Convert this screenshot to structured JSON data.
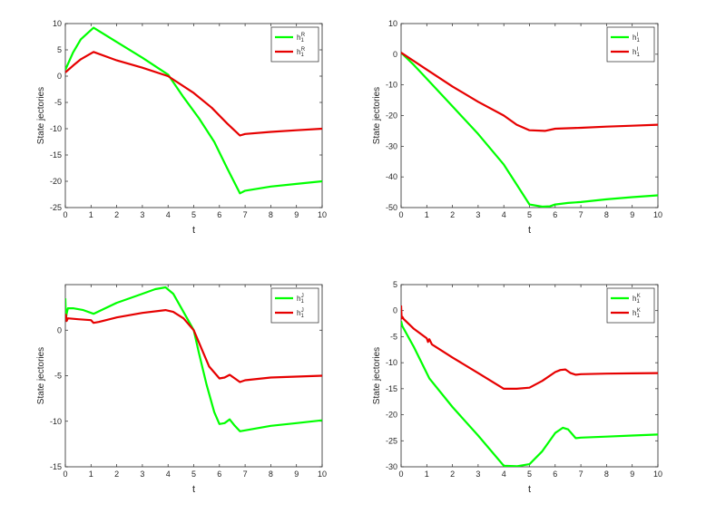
{
  "colors": {
    "green": "#00ff00",
    "red": "#e60000"
  },
  "chart_data": [
    {
      "type": "line",
      "xlabel": "t",
      "ylabel": "State jectories",
      "xlim": [
        0,
        10
      ],
      "ylim": [
        -25,
        10
      ],
      "xticks": [
        0,
        1,
        2,
        3,
        4,
        5,
        6,
        7,
        8,
        9,
        10
      ],
      "yticks": [
        -25,
        -20,
        -15,
        -10,
        -5,
        0,
        5,
        10
      ],
      "legend_position": "top-right",
      "series": [
        {
          "name": "h",
          "sup": "R",
          "sub": "1",
          "color": "#00ff00",
          "x": [
            0,
            0.3,
            0.6,
            1.1,
            2,
            3,
            4,
            4.6,
            5.2,
            5.8,
            6.3,
            6.8,
            7,
            8,
            9,
            10
          ],
          "y": [
            1.2,
            4.5,
            7,
            9.2,
            6.5,
            3.5,
            0.3,
            -4,
            -8,
            -12.5,
            -17.5,
            -22.3,
            -21.8,
            -21,
            -20.5,
            -20
          ]
        },
        {
          "name": "h",
          "sup": "R",
          "sub": "1",
          "color": "#e60000",
          "x": [
            0,
            0.3,
            0.6,
            1.1,
            2,
            3,
            4,
            5,
            5.7,
            6.3,
            6.8,
            7,
            8,
            9,
            10
          ],
          "y": [
            0.7,
            2,
            3.2,
            4.6,
            3,
            1.6,
            0,
            -3.2,
            -6,
            -9,
            -11.3,
            -11,
            -10.6,
            -10.3,
            -10
          ]
        }
      ]
    },
    {
      "type": "line",
      "xlabel": "t",
      "ylabel": "State jectories",
      "xlim": [
        0,
        10
      ],
      "ylim": [
        -50,
        10
      ],
      "xticks": [
        0,
        1,
        2,
        3,
        4,
        5,
        6,
        7,
        8,
        9,
        10
      ],
      "yticks": [
        -50,
        -40,
        -30,
        -20,
        -10,
        0,
        10
      ],
      "legend_position": "top-right",
      "series": [
        {
          "name": "h",
          "sup": "I",
          "sub": "1",
          "color": "#00ff00",
          "x": [
            0,
            0.5,
            1,
            2,
            3,
            4,
            4.5,
            5,
            5.5,
            5.8,
            6,
            6.5,
            7,
            8,
            9,
            10
          ],
          "y": [
            0.5,
            -3.5,
            -8,
            -17,
            -26,
            -36,
            -42.5,
            -49,
            -49.7,
            -49.6,
            -49,
            -48.5,
            -48.2,
            -47.3,
            -46.6,
            -46
          ]
        },
        {
          "name": "h",
          "sup": "I",
          "sub": "1",
          "color": "#e60000",
          "x": [
            0,
            1,
            2,
            3,
            4,
            4.5,
            5,
            5.6,
            6,
            7,
            8,
            9,
            10
          ],
          "y": [
            0.5,
            -5,
            -10.5,
            -15.5,
            -20,
            -23,
            -24.8,
            -25,
            -24.3,
            -24,
            -23.6,
            -23.3,
            -23
          ]
        }
      ]
    },
    {
      "type": "line",
      "xlabel": "t",
      "ylabel": "State jectories",
      "xlim": [
        0,
        10
      ],
      "ylim": [
        -15,
        5
      ],
      "xticks": [
        0,
        1,
        2,
        3,
        4,
        5,
        6,
        7,
        8,
        9,
        10
      ],
      "yticks": [
        -15,
        -10,
        -5,
        0
      ],
      "legend_position": "top-right",
      "series": [
        {
          "name": "h",
          "sup": "J",
          "sub": "1",
          "color": "#00ff00",
          "x": [
            0,
            0.02,
            0.05,
            0.1,
            0.3,
            0.7,
            1.1,
            2,
            3,
            3.5,
            3.9,
            4.2,
            4.6,
            5,
            5.2,
            5.5,
            5.8,
            6,
            6.2,
            6.4,
            6.6,
            6.8,
            7,
            8,
            9,
            10
          ],
          "y": [
            3.5,
            1.2,
            1.8,
            2.4,
            2.4,
            2.2,
            1.8,
            3,
            4,
            4.5,
            4.7,
            4,
            2,
            0,
            -2.5,
            -6,
            -9,
            -10.3,
            -10.2,
            -9.8,
            -10.5,
            -11.1,
            -11,
            -10.5,
            -10.2,
            -9.9
          ]
        },
        {
          "name": "h",
          "sup": "J",
          "sub": "1",
          "color": "#e60000",
          "x": [
            0,
            0.02,
            0.05,
            0.1,
            0.5,
            1,
            1.1,
            1.3,
            2,
            3,
            3.9,
            4.2,
            4.6,
            5,
            5.3,
            5.6,
            6,
            6.2,
            6.4,
            6.6,
            6.8,
            7,
            8,
            9,
            10
          ],
          "y": [
            1.4,
            1.7,
            1,
            1.3,
            1.2,
            1.1,
            0.8,
            0.9,
            1.4,
            1.9,
            2.2,
            2,
            1.3,
            0,
            -2,
            -4,
            -5.3,
            -5.2,
            -4.9,
            -5.3,
            -5.7,
            -5.5,
            -5.2,
            -5.1,
            -5
          ]
        }
      ]
    },
    {
      "type": "line",
      "xlabel": "t",
      "ylabel": "State jectories",
      "xlim": [
        0,
        10
      ],
      "ylim": [
        -30,
        5
      ],
      "xticks": [
        0,
        1,
        2,
        3,
        4,
        5,
        6,
        7,
        8,
        9,
        10
      ],
      "yticks": [
        -30,
        -25,
        -20,
        -15,
        -10,
        -5,
        0,
        5
      ],
      "legend_position": "top-right",
      "series": [
        {
          "name": "h",
          "sup": "K",
          "sub": "1",
          "color": "#00ff00",
          "x": [
            0,
            0.05,
            0.5,
            1.1,
            2,
            3,
            4,
            4.5,
            5,
            5.5,
            6,
            6.3,
            6.5,
            6.8,
            7,
            8,
            9,
            10
          ],
          "y": [
            -2,
            -3,
            -7,
            -13,
            -18.5,
            -24,
            -29.8,
            -29.9,
            -29.5,
            -27,
            -23.5,
            -22.5,
            -22.8,
            -24.5,
            -24.4,
            -24.2,
            -24,
            -23.8
          ]
        },
        {
          "name": "h",
          "sup": "K",
          "sub": "1",
          "color": "#e60000",
          "x": [
            0,
            0.02,
            0.05,
            0.1,
            0.5,
            1,
            1.05,
            1.1,
            1.2,
            2,
            3,
            4,
            4.5,
            5,
            5.5,
            6,
            6.2,
            6.4,
            6.6,
            6.8,
            7,
            8,
            9,
            10
          ],
          "y": [
            1,
            -1.5,
            -1.2,
            -1.6,
            -3.5,
            -5.3,
            -6,
            -5.5,
            -6.5,
            -9,
            -12,
            -15,
            -15,
            -14.8,
            -13.5,
            -11.8,
            -11.4,
            -11.3,
            -12,
            -12.3,
            -12.2,
            -12.1,
            -12.05,
            -12
          ]
        }
      ]
    }
  ]
}
